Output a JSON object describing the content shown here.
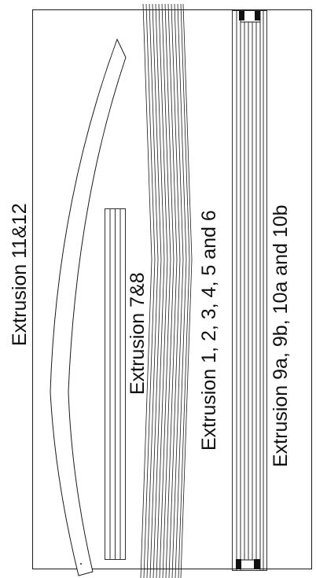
{
  "labels": {
    "extrusion_11_12": "Extrusion 11&12",
    "extrusion_7_8": "Extrusion 7&8",
    "extrusion_1_6": "Extrusion 1, 2, 3, 4, 5 and 6",
    "extrusion_9_10": "Extrusion 9a, 9b, 10a and 10b"
  },
  "colors": {
    "stroke": "#1a1a1a",
    "cap": "#111111",
    "background": "#ffffff"
  }
}
